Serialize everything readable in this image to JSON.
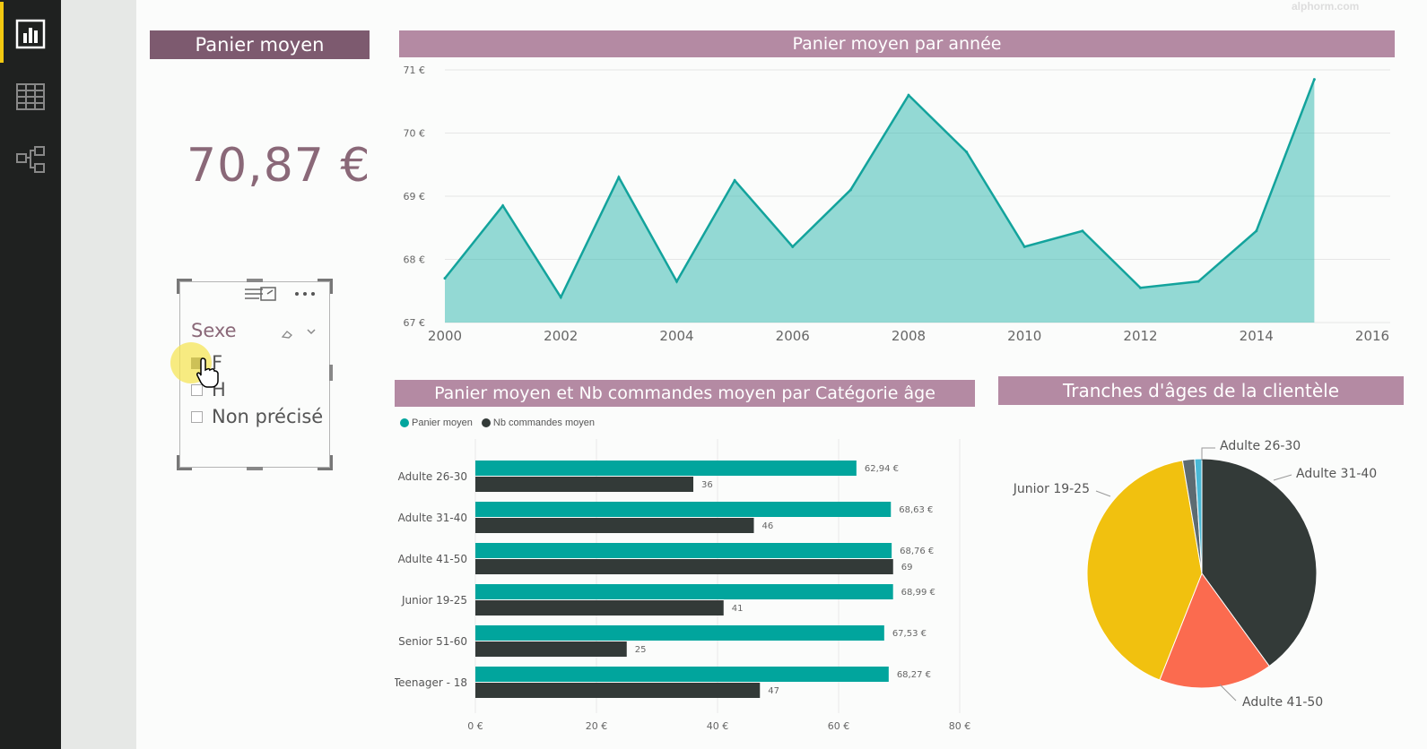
{
  "kpi": {
    "title": "Panier moyen",
    "value": "70,87 €"
  },
  "slicer": {
    "title": "Sexe",
    "items": [
      {
        "label": "F",
        "checked": true
      },
      {
        "label": "H",
        "checked": false
      },
      {
        "label": "Non précisé",
        "checked": false
      }
    ]
  },
  "sidebar": {
    "items": [
      "report-icon",
      "data-icon",
      "relationships-icon"
    ]
  },
  "chart_data": [
    {
      "type": "area",
      "title": "Panier moyen par année",
      "x": [
        2000,
        2001,
        2002,
        2003,
        2004,
        2005,
        2006,
        2007,
        2008,
        2009,
        2010,
        2011,
        2012,
        2013,
        2014,
        2015
      ],
      "values": [
        67.7,
        68.85,
        67.4,
        69.3,
        67.65,
        69.25,
        68.2,
        69.1,
        70.6,
        69.7,
        68.2,
        68.45,
        67.55,
        67.65,
        68.45,
        70.85
      ],
      "xlim": [
        2000,
        2016
      ],
      "xticks": [
        "2000",
        "2002",
        "2004",
        "2006",
        "2008",
        "2010",
        "2012",
        "2014",
        "2016"
      ],
      "ylim": [
        67,
        71
      ],
      "yticks": [
        "67 €",
        "68 €",
        "69 €",
        "70 €",
        "71 €"
      ],
      "color": "#2bb5ae"
    },
    {
      "type": "bar",
      "title": "Panier moyen et Nb commandes moyen par Catégorie âge",
      "categories": [
        "Adulte 26-30",
        "Adulte 31-40",
        "Adulte 41-50",
        "Junior 19-25",
        "Senior 51-60",
        "Teenager - 18"
      ],
      "series": [
        {
          "name": "Panier moyen",
          "values": [
            62.94,
            68.63,
            68.76,
            68.99,
            67.53,
            68.27
          ],
          "labels": [
            "62,94 €",
            "68,63 €",
            "68,76 €",
            "68,99 €",
            "67,53 €",
            "68,27 €"
          ],
          "color": "#01a59d"
        },
        {
          "name": "Nb commandes moyen",
          "values": [
            36,
            46,
            69,
            41,
            25,
            47
          ],
          "labels": [
            "36",
            "46",
            "69",
            "41",
            "25",
            "47"
          ],
          "color": "#333a38"
        }
      ],
      "xlim": [
        0,
        80
      ],
      "xticks": [
        "0 €",
        "20 €",
        "40 €",
        "60 €",
        "80 €"
      ],
      "legend": "top-left"
    },
    {
      "type": "pie",
      "title": "Tranches d'âges de la clientèle",
      "slices": [
        {
          "label": "Adulte 31-40",
          "value": 40,
          "color": "#333a38"
        },
        {
          "label": "Adulte 41-50",
          "value": 16,
          "color": "#fb6b4f"
        },
        {
          "label": "Junior 19-25",
          "value": 41.3,
          "color": "#f1c10f"
        },
        {
          "label": "",
          "value": 1.7,
          "color": "#5d6b72"
        },
        {
          "label": "Adulte 26-30",
          "value": 1,
          "color": "#49b8d6"
        }
      ]
    }
  ],
  "watermark": "alphorm.com"
}
